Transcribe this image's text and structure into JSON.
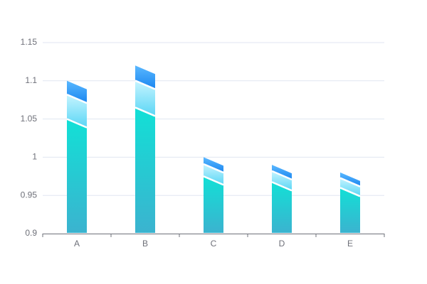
{
  "chart_data": {
    "type": "bar",
    "categories": [
      "A",
      "B",
      "C",
      "D",
      "E"
    ],
    "values": [
      1.1,
      1.12,
      1.0,
      0.99,
      0.98
    ],
    "ylim": [
      0.9,
      1.15
    ],
    "yticks": [
      0.9,
      0.95,
      1,
      1.05,
      1.1,
      1.15
    ],
    "grid": true
  }
}
